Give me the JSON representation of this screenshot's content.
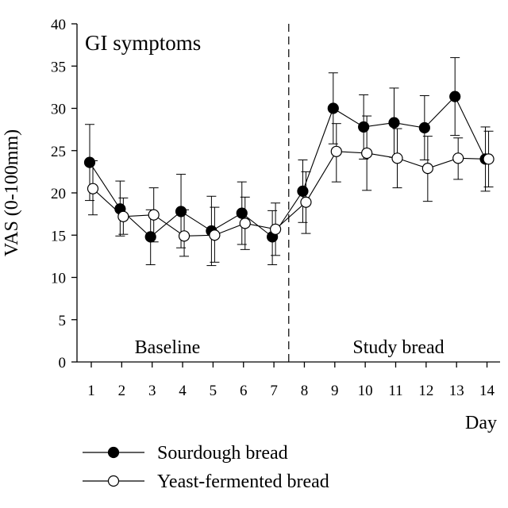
{
  "chart_data": {
    "type": "line",
    "title": "GI symptoms",
    "xlabel": "Day",
    "ylabel": "VAS (0-100mm)",
    "x": [
      1,
      2,
      3,
      4,
      5,
      6,
      7,
      8,
      9,
      10,
      11,
      12,
      13,
      14
    ],
    "xticks": [
      "1",
      "2",
      "3",
      "4",
      "5",
      "6",
      "7",
      "8",
      "9",
      "10",
      "11",
      "12",
      "13",
      "14"
    ],
    "ylim": [
      0,
      40
    ],
    "yticks": [
      "0",
      "5",
      "10",
      "15",
      "20",
      "25",
      "30",
      "35",
      "40"
    ],
    "grid": false,
    "legend_position": "bottom",
    "regions": [
      {
        "label": "Baseline",
        "from_day": 1,
        "to_day": 7
      },
      {
        "label": "Study bread",
        "from_day": 8,
        "to_day": 14
      }
    ],
    "divider_between_days": [
      7,
      8
    ],
    "series": [
      {
        "name": "Sourdough bread",
        "marker": "filled-circle",
        "color": "#000000",
        "values": [
          23.6,
          18.1,
          14.8,
          17.8,
          15.5,
          17.6,
          14.8,
          20.2,
          30.0,
          27.8,
          28.3,
          27.7,
          31.4,
          24.0
        ],
        "err_upper": [
          28.1,
          21.4,
          18.0,
          22.2,
          19.6,
          21.3,
          17.9,
          23.9,
          34.2,
          31.6,
          32.4,
          31.5,
          36.0,
          27.8
        ],
        "err_lower": [
          19.1,
          14.9,
          11.5,
          13.5,
          11.4,
          13.9,
          11.5,
          16.5,
          25.8,
          24.0,
          24.2,
          23.9,
          26.8,
          20.2
        ]
      },
      {
        "name": "Yeast-fermented bread",
        "marker": "open-circle",
        "color": "#000000",
        "values": [
          20.5,
          17.2,
          17.4,
          14.9,
          15.0,
          16.4,
          15.7,
          18.9,
          24.9,
          24.7,
          24.1,
          22.9,
          24.1,
          24.0
        ],
        "err_upper": [
          23.8,
          19.4,
          20.6,
          18.0,
          18.3,
          19.5,
          18.8,
          22.5,
          28.2,
          29.1,
          27.6,
          26.7,
          26.5,
          27.3
        ],
        "err_lower": [
          17.4,
          15.1,
          14.2,
          12.5,
          11.8,
          13.3,
          12.6,
          15.2,
          21.3,
          20.3,
          20.6,
          19.0,
          21.6,
          20.7
        ]
      }
    ]
  }
}
